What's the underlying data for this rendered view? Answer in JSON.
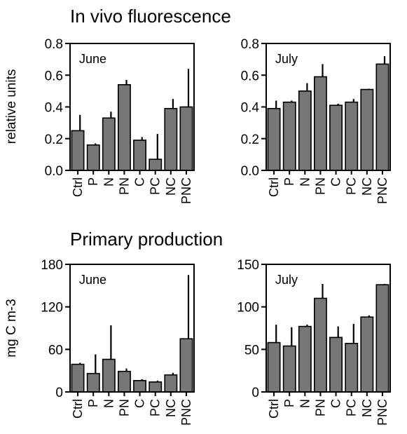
{
  "section_titles": {
    "fluorescence": "In vivo fluorescence",
    "production": "Primary production"
  },
  "colors": {
    "bar_fill": "#777777",
    "stroke": "#000000"
  },
  "chart_data": [
    {
      "type": "bar",
      "group": "fluorescence",
      "panel_label": "June",
      "ylabel": "relative units",
      "categories": [
        "Ctrl",
        "P",
        "N",
        "PN",
        "C",
        "PC",
        "NC",
        "PNC"
      ],
      "values": [
        0.25,
        0.16,
        0.33,
        0.54,
        0.19,
        0.07,
        0.39,
        0.4
      ],
      "errors": [
        0.1,
        0.01,
        0.04,
        0.03,
        0.02,
        0.16,
        0.06,
        0.24
      ],
      "ylim": [
        0,
        0.8
      ],
      "yticks": [
        0.0,
        0.2,
        0.4,
        0.6,
        0.8
      ],
      "ytick_labels": [
        "0.0",
        "0.2",
        "0.4",
        "0.6",
        "0.8"
      ],
      "grid": false
    },
    {
      "type": "bar",
      "group": "fluorescence",
      "panel_label": "July",
      "ylabel": "",
      "categories": [
        "Ctrl",
        "P",
        "N",
        "PN",
        "C",
        "PC",
        "NC",
        "PNC"
      ],
      "values": [
        0.39,
        0.43,
        0.5,
        0.59,
        0.41,
        0.43,
        0.51,
        0.67
      ],
      "errors": [
        0.05,
        0.01,
        0.05,
        0.08,
        0.01,
        0.02,
        0.005,
        0.05
      ],
      "ylim": [
        0,
        0.8
      ],
      "yticks": [
        0.0,
        0.2,
        0.4,
        0.6,
        0.8
      ],
      "ytick_labels": [
        "0.0",
        "0.2",
        "0.4",
        "0.6",
        "0.8"
      ],
      "grid": false
    },
    {
      "type": "bar",
      "group": "production",
      "panel_label": "June",
      "ylabel": "mg C m-3",
      "categories": [
        "Ctrl",
        "P",
        "N",
        "PN",
        "C",
        "PC",
        "NC",
        "PNC"
      ],
      "values": [
        39,
        26,
        46,
        29,
        16,
        14,
        24,
        75
      ],
      "errors": [
        2,
        27,
        48,
        4,
        2,
        2,
        3,
        90
      ],
      "ylim": [
        0,
        180
      ],
      "yticks": [
        0,
        60,
        120,
        180
      ],
      "ytick_labels": [
        "0",
        "60",
        "120",
        "180"
      ],
      "grid": false
    },
    {
      "type": "bar",
      "group": "production",
      "panel_label": "July",
      "ylabel": "",
      "categories": [
        "Ctrl",
        "P",
        "N",
        "PN",
        "C",
        "PC",
        "NC",
        "PNC"
      ],
      "values": [
        58,
        54,
        77,
        110,
        64,
        57,
        88,
        126
      ],
      "errors": [
        21,
        22,
        2,
        17,
        13,
        23,
        2,
        1
      ],
      "ylim": [
        0,
        150
      ],
      "yticks": [
        0,
        50,
        100,
        150
      ],
      "ytick_labels": [
        "0",
        "50",
        "100",
        "150"
      ],
      "grid": false
    }
  ]
}
